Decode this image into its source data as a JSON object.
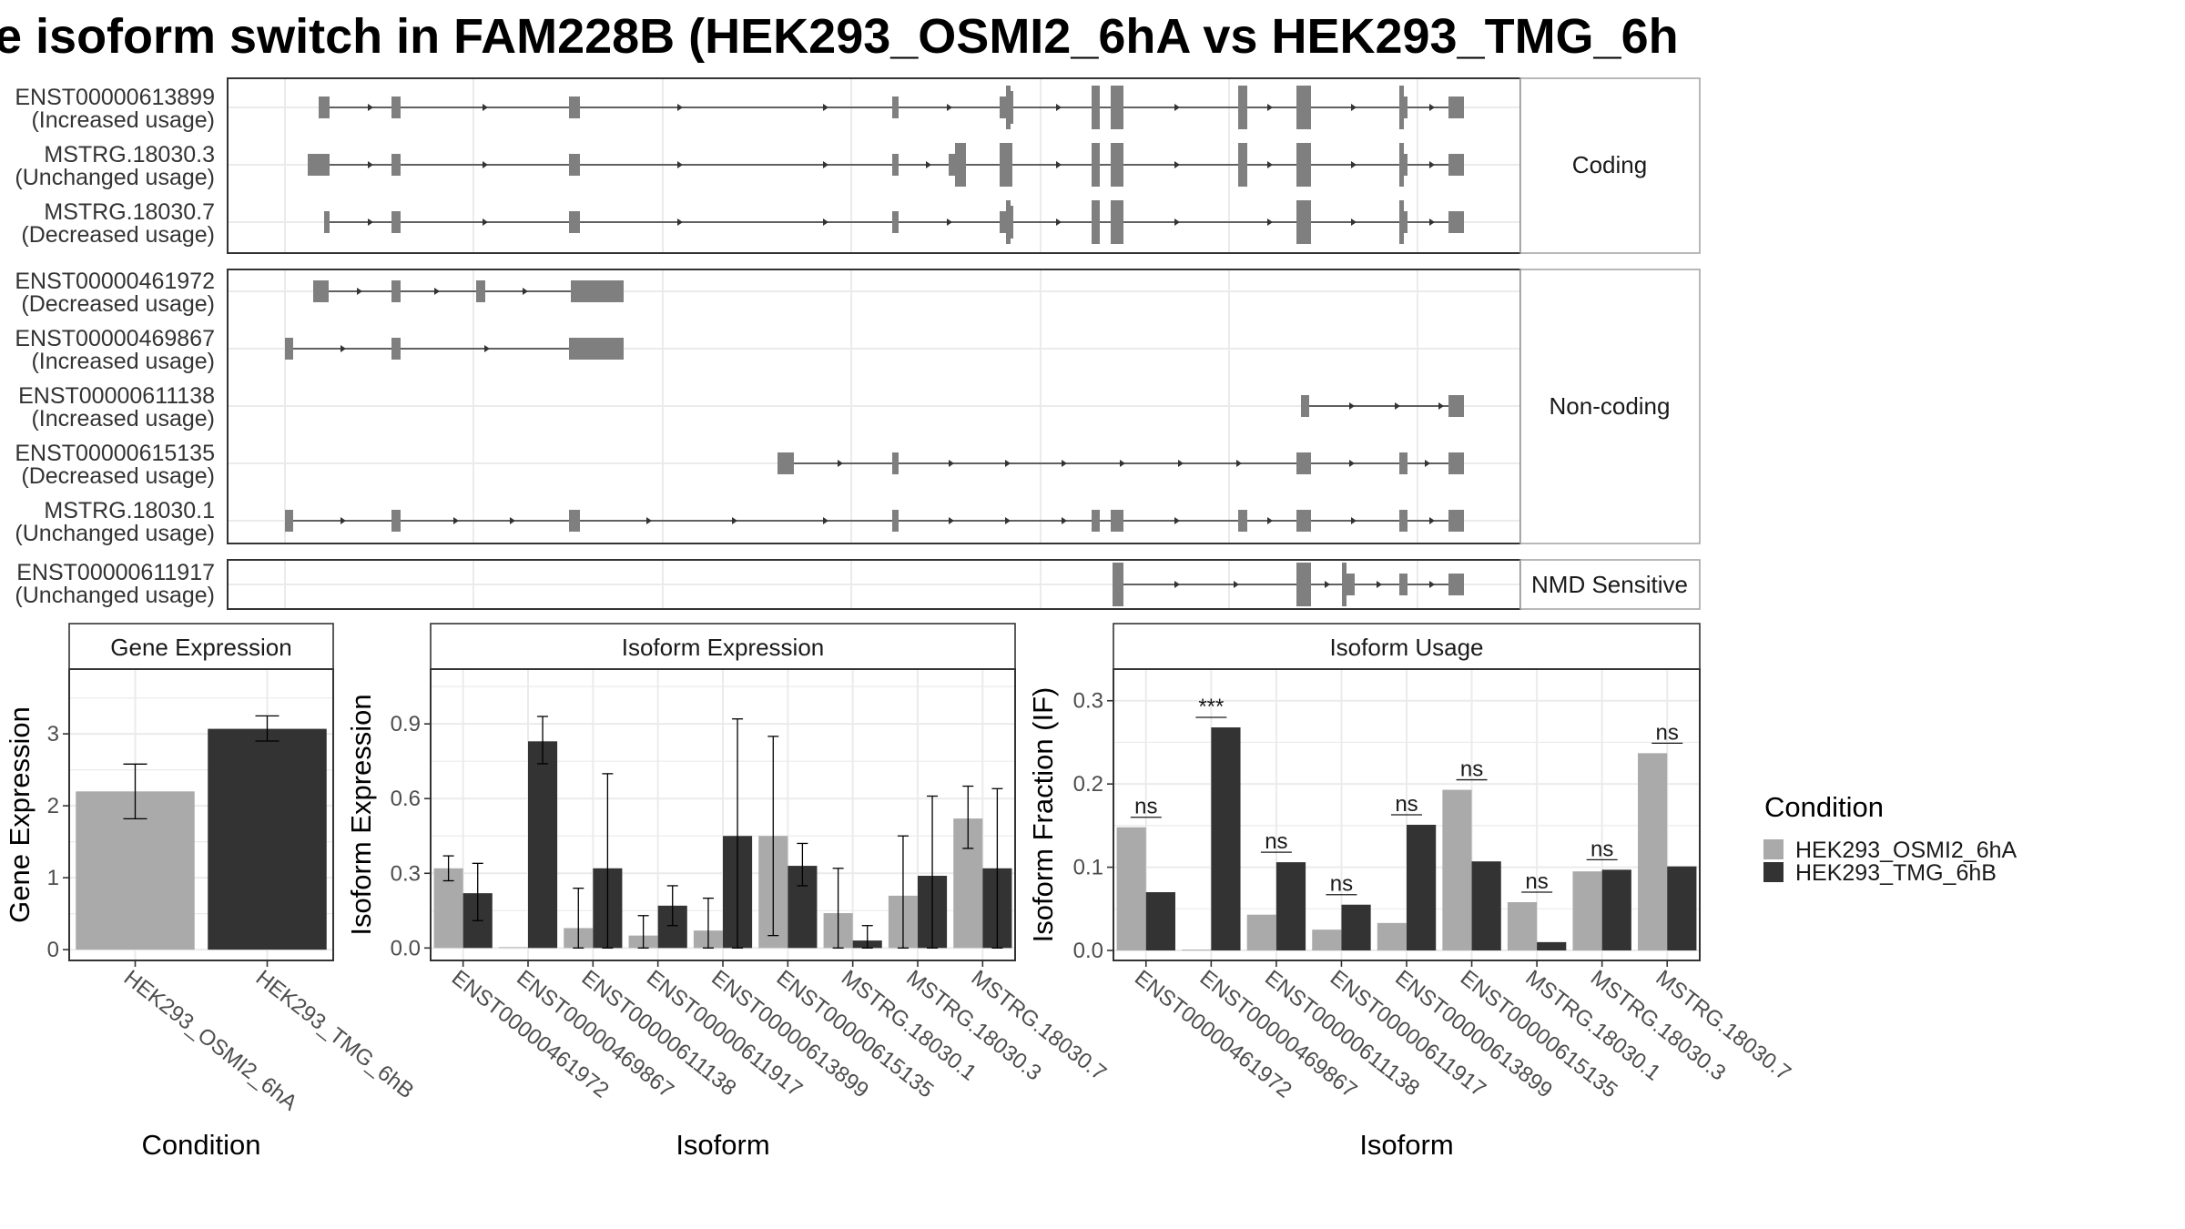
{
  "title": "e isoform switch in FAM228B (HEK293_OSMI2_6hA vs HEK293_TMG_6h",
  "colors": {
    "cond_a": "#aaaaaa",
    "cond_b": "#333333",
    "exon": "#7f7f7f",
    "grid": "#ebebeb",
    "panel_border": "#333333",
    "strip_border": "#a6a6a6"
  },
  "chart_data": [
    {
      "type": "gene-structure",
      "facets": [
        {
          "label": "Coding",
          "transcripts": [
            {
              "id": "ENST00000613899",
              "usage": "(Increased usage)"
            },
            {
              "id": "MSTRG.18030.3",
              "usage": "(Unchanged usage)"
            },
            {
              "id": "MSTRG.18030.7",
              "usage": "(Decreased usage)"
            }
          ]
        },
        {
          "label": "Non-coding",
          "transcripts": [
            {
              "id": "ENST00000461972",
              "usage": "(Decreased usage)"
            },
            {
              "id": "ENST00000469867",
              "usage": "(Increased usage)"
            },
            {
              "id": "ENST00000611138",
              "usage": "(Increased usage)"
            },
            {
              "id": "ENST00000615135",
              "usage": "(Decreased usage)"
            },
            {
              "id": "MSTRG.18030.1",
              "usage": "(Unchanged usage)"
            }
          ]
        },
        {
          "label": "NMD Sensitive",
          "transcripts": [
            {
              "id": "ENST00000611917",
              "usage": "(Unchanged usage)"
            }
          ]
        }
      ]
    },
    {
      "type": "bar",
      "panel_title": "Gene Expression",
      "xlabel": "Condition",
      "ylabel": "Gene Expression",
      "ylim": [
        -0.15,
        3.9
      ],
      "yticks": [
        0,
        1,
        2,
        3
      ],
      "categories": [
        "HEK293_OSMI2_6hA",
        "HEK293_TMG_6hB"
      ],
      "values": [
        2.2,
        3.07
      ],
      "error_low": [
        1.82,
        2.9
      ],
      "error_high": [
        2.58,
        3.25
      ]
    },
    {
      "type": "bar",
      "panel_title": "Isoform Expression",
      "xlabel": "Isoform",
      "ylabel": "Isoform Expression",
      "ylim": [
        -0.05,
        1.12
      ],
      "yticks": [
        0.0,
        0.3,
        0.6,
        0.9
      ],
      "ytick_labels": [
        "0.0",
        "0.3",
        "0.6",
        "0.9"
      ],
      "categories": [
        "ENST00000461972",
        "ENST00000469867",
        "ENST00000611138",
        "ENST00000611917",
        "ENST00000613899",
        "ENST00000615135",
        "MSTRG.18030.1",
        "MSTRG.18030.3",
        "MSTRG.18030.7"
      ],
      "series": [
        {
          "name": "HEK293_OSMI2_6hA",
          "values": [
            0.32,
            0.0,
            0.08,
            0.05,
            0.07,
            0.45,
            0.14,
            0.21,
            0.52
          ],
          "error_low": [
            0.27,
            null,
            0.0,
            0.0,
            0.0,
            0.05,
            0.0,
            0.0,
            0.4
          ],
          "error_high": [
            0.37,
            null,
            0.24,
            0.13,
            0.2,
            0.85,
            0.32,
            0.45,
            0.65
          ]
        },
        {
          "name": "HEK293_TMG_6hB",
          "values": [
            0.22,
            0.83,
            0.32,
            0.17,
            0.45,
            0.33,
            0.03,
            0.29,
            0.32
          ],
          "error_low": [
            0.11,
            0.74,
            0.0,
            0.09,
            0.0,
            0.25,
            0.0,
            0.0,
            0.0
          ],
          "error_high": [
            0.34,
            0.93,
            0.7,
            0.25,
            0.92,
            0.42,
            0.09,
            0.61,
            0.64
          ]
        }
      ]
    },
    {
      "type": "bar",
      "panel_title": "Isoform Usage",
      "xlabel": "Isoform",
      "ylabel": "Isoform Fraction (IF)",
      "ylim": [
        -0.012,
        0.338
      ],
      "yticks": [
        0.0,
        0.1,
        0.2,
        0.3
      ],
      "ytick_labels": [
        "0.0",
        "0.1",
        "0.2",
        "0.3"
      ],
      "categories": [
        "ENST00000461972",
        "ENST00000469867",
        "ENST00000611138",
        "ENST00000611917",
        "ENST00000613899",
        "ENST00000615135",
        "MSTRG.18030.1",
        "MSTRG.18030.3",
        "MSTRG.18030.7"
      ],
      "series": [
        {
          "name": "HEK293_OSMI2_6hA",
          "values": [
            0.148,
            0.0,
            0.043,
            0.025,
            0.033,
            0.193,
            0.058,
            0.095,
            0.237
          ]
        },
        {
          "name": "HEK293_TMG_6hB",
          "values": [
            0.07,
            0.268,
            0.106,
            0.055,
            0.151,
            0.107,
            0.01,
            0.097,
            0.101
          ]
        }
      ],
      "significance": [
        "ns",
        "***",
        "ns",
        "ns",
        "ns",
        "ns",
        "ns",
        "ns",
        "ns"
      ]
    }
  ],
  "legend": {
    "title": "Condition",
    "items": [
      "HEK293_OSMI2_6hA",
      "HEK293_TMG_6hB"
    ]
  }
}
